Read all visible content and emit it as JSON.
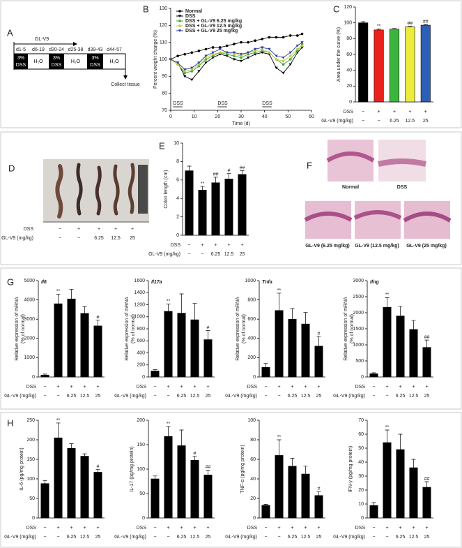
{
  "panel_labels": [
    "A",
    "B",
    "C",
    "D",
    "E",
    "F",
    "G",
    "H"
  ],
  "timeline": {
    "agent": "GL-V9",
    "end": "Collect tissue",
    "phases": [
      {
        "days": "d1-5",
        "lines": [
          "3%",
          "DSS"
        ],
        "dark": true
      },
      {
        "days": "d6-19",
        "lines": [
          "H₂O"
        ],
        "dark": false
      },
      {
        "days": "d20-24",
        "lines": [
          "3%",
          "DSS"
        ],
        "dark": true
      },
      {
        "days": "d25-38",
        "lines": [
          "H₂O"
        ],
        "dark": false
      },
      {
        "days": "d39-43",
        "lines": [
          "3%",
          "DSS"
        ],
        "dark": true
      },
      {
        "days": "d44-57",
        "lines": [
          "H₂O"
        ],
        "dark": false
      }
    ]
  },
  "photo_d": {
    "row_labels": [
      "DSS",
      "GL-V9 (mg/kg)"
    ],
    "dss_row": [
      "−",
      "+",
      "+",
      "+",
      "+"
    ],
    "dose_row": [
      "−",
      "−",
      "6.25",
      "12.5",
      "25"
    ]
  },
  "histology_f": {
    "labels": [
      "Normal",
      "DSS",
      "GL-V9 (6.25 mg/kg)",
      "GL-V9 (12.5 mg/kg)",
      "GL-V9 (25 mg/kg)"
    ]
  },
  "chart_data": [
    {
      "type": "line",
      "xlabel": "Time (d)",
      "ylabel": "Percent weight change (%)",
      "x": [
        0,
        3,
        6,
        9,
        12,
        15,
        18,
        21,
        24,
        27,
        30,
        33,
        36,
        39,
        42,
        45,
        48,
        51,
        54,
        56
      ],
      "xlim": [
        0,
        60
      ],
      "xticks": [
        0,
        10,
        20,
        30,
        40,
        50,
        60
      ],
      "ylim": [
        70,
        130
      ],
      "yticks": [
        70,
        80,
        90,
        100,
        110,
        120,
        130
      ],
      "legend": "top-left",
      "series": [
        {
          "name": "Normal",
          "color": "#000000",
          "marker": "circle",
          "values": [
            100,
            102,
            103,
            104,
            105,
            106,
            107,
            107,
            108,
            109,
            110,
            110,
            111,
            112,
            113,
            113,
            113,
            114,
            114,
            115
          ]
        },
        {
          "name": "DSS",
          "color": "#000000",
          "marker": "triangle",
          "values": [
            100,
            98,
            90,
            88,
            93,
            98,
            101,
            103,
            102,
            100,
            99,
            101,
            103,
            104,
            103,
            95,
            92,
            97,
            104,
            107
          ]
        },
        {
          "name": "DSS + GL-V9 6.25 mg/kg",
          "color": "#3aa83a",
          "marker": "circle",
          "values": [
            100,
            97,
            92,
            93,
            96,
            100,
            102,
            104,
            103,
            102,
            101,
            103,
            104,
            105,
            104,
            100,
            97,
            100,
            105,
            109
          ]
        },
        {
          "name": "DSS + GL-V9 12.5 mg/kg",
          "color": "#c9c93a",
          "marker": "circle",
          "values": [
            100,
            97,
            93,
            94,
            97,
            101,
            103,
            104,
            104,
            103,
            102,
            104,
            105,
            106,
            104,
            100,
            99,
            102,
            106,
            108
          ]
        },
        {
          "name": "DSS + GL-V9 25 mg/kg",
          "color": "#2a3f9e",
          "marker": "triangle",
          "values": [
            100,
            98,
            94,
            95,
            98,
            102,
            104,
            106,
            104,
            104,
            103,
            104,
            106,
            107,
            106,
            102,
            101,
            104,
            108,
            110
          ]
        }
      ],
      "dss_periods": [
        {
          "label": "DSS",
          "start": 1,
          "end": 5
        },
        {
          "label": "DSS",
          "start": 20,
          "end": 24
        },
        {
          "label": "DSS",
          "start": 39,
          "end": 43
        }
      ]
    },
    {
      "type": "bar",
      "ylabel": "Area under the curve (%)",
      "ylim": [
        0,
        120
      ],
      "yticks": [
        0,
        20,
        40,
        60,
        80,
        100,
        120
      ],
      "colors": [
        "#000000",
        "#e8231c",
        "#3db53d",
        "#ecec3a",
        "#2b5fb8"
      ],
      "values": [
        100,
        91,
        92,
        95,
        97
      ],
      "errors": [
        1.5,
        1,
        0.8,
        0.8,
        0.8
      ],
      "annotations": [
        null,
        "**",
        null,
        "##",
        "##"
      ],
      "row_labels": [
        "DSS",
        "GL-V9 (mg/kg)"
      ],
      "dss_row": [
        "−",
        "+",
        "+",
        "+",
        "+"
      ],
      "dose_row": [
        "−",
        "−",
        "6.25",
        "12.5",
        "25"
      ]
    },
    {
      "type": "bar",
      "ylabel": "Colon length (cm)",
      "ylim": [
        0,
        10
      ],
      "yticks": [
        0,
        2,
        4,
        6,
        8,
        10
      ],
      "color": "#000000",
      "values": [
        7.0,
        4.9,
        5.7,
        6.1,
        6.6
      ],
      "errors": [
        0.5,
        0.4,
        0.6,
        0.6,
        0.4
      ],
      "annotations": [
        null,
        "**",
        "##",
        "#",
        "##"
      ],
      "row_labels": [
        "DSS",
        "GL-V9 (mg/kg)"
      ],
      "dss_row": [
        "−",
        "+",
        "+",
        "+",
        "+"
      ],
      "dose_row": [
        "−",
        "−",
        "6.25",
        "12.5",
        "25"
      ]
    },
    {
      "type": "bar",
      "title": "Il6",
      "ylabel": [
        "Relative expression of mRNA",
        "(% of normal)"
      ],
      "ylim": [
        0,
        5000
      ],
      "yticks": [
        0,
        1000,
        2000,
        3000,
        4000,
        5000
      ],
      "color": "#000000",
      "values": [
        100,
        3800,
        4050,
        3300,
        2650
      ],
      "errors": [
        50,
        500,
        500,
        350,
        300
      ],
      "annotations": [
        null,
        "**",
        null,
        null,
        "#"
      ],
      "row_labels": [
        "DSS",
        "GL-V9 (mg/kg)"
      ],
      "dss_row": [
        "−",
        "+",
        "+",
        "+",
        "+"
      ],
      "dose_row": [
        "−",
        "−",
        "6.25",
        "12.5",
        "25"
      ]
    },
    {
      "type": "bar",
      "title": "Il17a",
      "ylabel": [
        "Relative expression of mRNA",
        "(% of normal)"
      ],
      "ylim": [
        0,
        1600
      ],
      "yticks": [
        0,
        200,
        400,
        600,
        800,
        1000,
        1200,
        1400,
        1600
      ],
      "color": "#000000",
      "values": [
        100,
        1090,
        1060,
        950,
        620
      ],
      "errors": [
        20,
        120,
        320,
        270,
        150
      ],
      "annotations": [
        null,
        "**",
        null,
        null,
        "#"
      ],
      "row_labels": [
        "DSS",
        "GL-V9 (mg/kg)"
      ],
      "dss_row": [
        "−",
        "+",
        "+",
        "+",
        "+"
      ],
      "dose_row": [
        "−",
        "−",
        "6.25",
        "12.5",
        "25"
      ]
    },
    {
      "type": "bar",
      "title": "Tnfa",
      "ylabel": [
        "Relative expression of mRNA",
        "(% of normal)"
      ],
      "ylim": [
        0,
        1000
      ],
      "yticks": [
        0,
        200,
        400,
        600,
        800,
        1000
      ],
      "color": "#000000",
      "values": [
        100,
        690,
        600,
        550,
        320
      ],
      "errors": [
        40,
        180,
        110,
        120,
        100
      ],
      "annotations": [
        null,
        "**",
        null,
        null,
        "#"
      ],
      "row_labels": [
        "DSS",
        "GL-V9 (mg/kg)"
      ],
      "dss_row": [
        "−",
        "+",
        "+",
        "+",
        "+"
      ],
      "dose_row": [
        "−",
        "−",
        "6.25",
        "12.5",
        "25"
      ]
    },
    {
      "type": "bar",
      "title": "Ifng",
      "ylabel": [
        "Relative expression of mRNA",
        "(% of normal)"
      ],
      "ylim": [
        0,
        3000
      ],
      "yticks": [
        0,
        500,
        1000,
        1500,
        2000,
        2500,
        3000
      ],
      "color": "#000000",
      "values": [
        100,
        2170,
        1900,
        1480,
        920
      ],
      "errors": [
        30,
        300,
        300,
        280,
        230
      ],
      "annotations": [
        null,
        "**",
        null,
        null,
        "##"
      ],
      "row_labels": [
        "DSS",
        "GL-V9 (mg/kg)"
      ],
      "dss_row": [
        "−",
        "+",
        "+",
        "+",
        "+"
      ],
      "dose_row": [
        "−",
        "−",
        "6.25",
        "12.5",
        "25"
      ]
    },
    {
      "type": "bar",
      "ylabel": "IL-6 (pg/mg protein)",
      "ylim": [
        0,
        250
      ],
      "yticks": [
        0,
        50,
        100,
        150,
        200,
        250
      ],
      "color": "#000000",
      "values": [
        88,
        205,
        178,
        158,
        117
      ],
      "errors": [
        8,
        38,
        12,
        6,
        7
      ],
      "annotations": [
        null,
        "**",
        null,
        null,
        "#"
      ],
      "row_labels": [
        "DSS",
        "GL-V9 (mg/kg)"
      ],
      "dss_row": [
        "−",
        "+",
        "+",
        "+",
        "+"
      ],
      "dose_row": [
        "−",
        "−",
        "6.25",
        "12.5",
        "25"
      ]
    },
    {
      "type": "bar",
      "ylabel": "IL-17 (pg/mg protein)",
      "ylim": [
        0,
        200
      ],
      "yticks": [
        0,
        50,
        100,
        150,
        200
      ],
      "color": "#000000",
      "values": [
        80,
        167,
        148,
        118,
        88
      ],
      "errors": [
        6,
        20,
        32,
        8,
        10
      ],
      "annotations": [
        null,
        "**",
        null,
        "#",
        "##"
      ],
      "row_labels": [
        "DSS",
        "GL-V9 (mg/kg)"
      ],
      "dss_row": [
        "−",
        "+",
        "+",
        "+",
        "+"
      ],
      "dose_row": [
        "−",
        "−",
        "6.25",
        "12.5",
        "25"
      ]
    },
    {
      "type": "bar",
      "ylabel": "TNF-α (pg/mg protein)",
      "ylim": [
        0,
        100
      ],
      "yticks": [
        0,
        20,
        40,
        60,
        80,
        100
      ],
      "color": "#000000",
      "values": [
        13,
        64,
        53,
        45,
        23
      ],
      "errors": [
        1,
        16,
        8,
        8,
        4
      ],
      "annotations": [
        null,
        "**",
        null,
        null,
        "#"
      ],
      "row_labels": [
        "DSS",
        "GL-V9 (mg/kg)"
      ],
      "dss_row": [
        "−",
        "+",
        "+",
        "+",
        "+"
      ],
      "dose_row": [
        "−",
        "−",
        "6.25",
        "12.5",
        "25"
      ]
    },
    {
      "type": "bar",
      "ylabel": "IFN-γ (pg/mg protein)",
      "ylim": [
        0,
        70
      ],
      "yticks": [
        0,
        10,
        20,
        30,
        40,
        50,
        60,
        70
      ],
      "color": "#000000",
      "values": [
        9,
        54,
        49,
        36,
        22
      ],
      "errors": [
        2,
        9,
        11,
        6,
        4
      ],
      "annotations": [
        null,
        "**",
        null,
        null,
        "##"
      ],
      "row_labels": [
        "DSS",
        "GL-V9 (mg/kg)"
      ],
      "dss_row": [
        "−",
        "+",
        "+",
        "+",
        "+"
      ],
      "dose_row": [
        "−",
        "−",
        "6.25",
        "12.5",
        "25"
      ]
    }
  ]
}
